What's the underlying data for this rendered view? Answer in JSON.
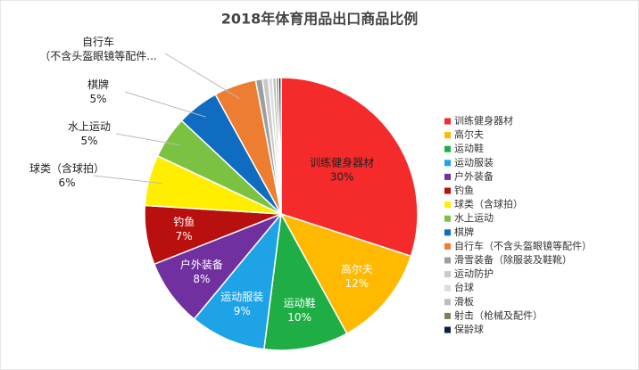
{
  "chart_data": {
    "type": "pie",
    "title": "2018年体育用品出口商品比例",
    "categories": [
      "训练健身器材",
      "高尔夫",
      "运动鞋",
      "运动服装",
      "户外装备",
      "钓鱼",
      "球类（含球拍）",
      "水上运动",
      "棋牌",
      "自行车（不含头盔眼镜等配件）",
      "滑雪装备（除服装及鞋靴）",
      "运动防护",
      "台球",
      "滑板",
      "射击（枪械及配件）",
      "保龄球"
    ],
    "values": [
      30,
      12,
      10,
      9,
      8,
      7,
      6,
      5,
      5,
      5,
      0.8,
      0.7,
      0.5,
      0.4,
      0.3,
      0.3
    ],
    "value_labels": [
      "30%",
      "12%",
      "10%",
      "9%",
      "8%",
      "7%",
      "6%",
      "5%",
      "5%",
      null,
      null,
      null,
      null,
      null,
      null,
      null
    ],
    "colors": [
      "#f52a2a",
      "#ffb900",
      "#1fae45",
      "#1ea3e6",
      "#7030a0",
      "#b80f0f",
      "#ffee00",
      "#7cc242",
      "#0f6cc0",
      "#ed7d31",
      "#9e9e9e",
      "#c9c9c9",
      "#dcdcdc",
      "#bdbdbd",
      "#7f7f5f",
      "#0a1f44"
    ],
    "callout_label": [
      "自行车",
      "（不含头盔眼镜等配件..."
    ],
    "legend": "right"
  }
}
